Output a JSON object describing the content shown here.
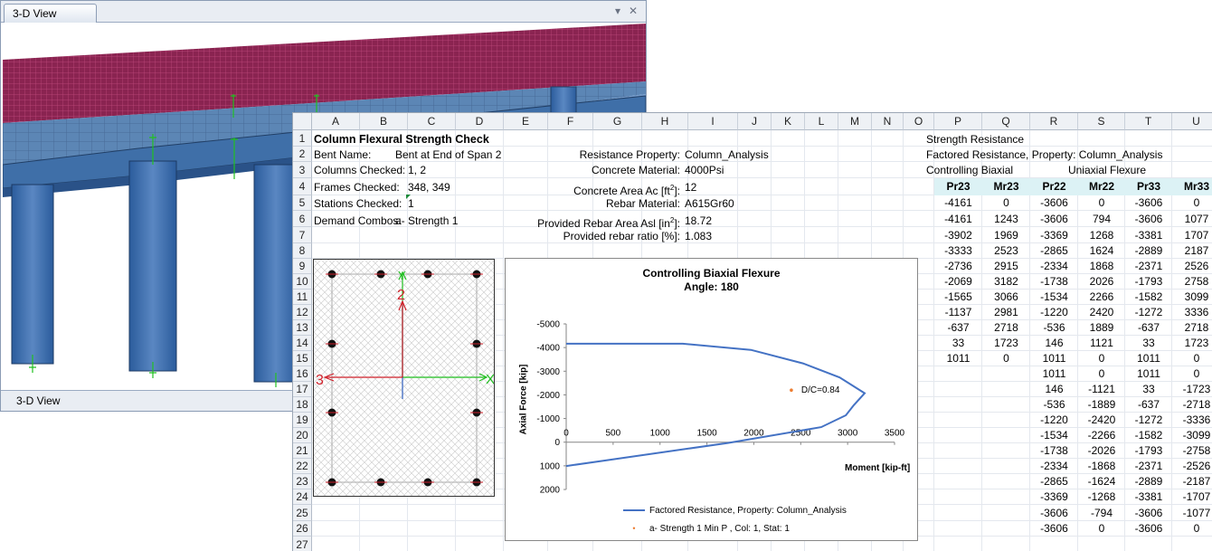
{
  "view3d": {
    "tab_label": "3-D View",
    "status_label": "3-D View",
    "colors": {
      "deck": "#8a2451",
      "girder": "#3f6a9e",
      "column": "#2f63a8",
      "support": "#21c021"
    }
  },
  "sheet": {
    "columns": [
      "A",
      "B",
      "C",
      "D",
      "E",
      "F",
      "G",
      "H",
      "I",
      "J",
      "K",
      "L",
      "M",
      "N",
      "O",
      "P",
      "Q",
      "R",
      "S",
      "T",
      "U"
    ],
    "rows": [
      "1",
      "2",
      "3",
      "4",
      "5",
      "6",
      "7",
      "8",
      "9",
      "10",
      "11",
      "12",
      "13",
      "14",
      "15",
      "16",
      "17",
      "18",
      "19",
      "20",
      "21",
      "22",
      "23",
      "24",
      "25",
      "26",
      "27"
    ],
    "title": "Column Flexural Strength Check",
    "bent_label": "Bent Name:",
    "bent_value": "Bent at End of Span 2",
    "columns_label": "Columns Checked:",
    "columns_value": "1, 2",
    "frames_label": "Frames Checked:",
    "frames_value": "348, 349",
    "stations_label": "Stations Checked:",
    "stations_value": "1",
    "demand_label": "Demand Combos:",
    "demand_value": "a- Strength 1",
    "resistance_label": "Resistance Property:",
    "resistance_value": "Column_Analysis",
    "concrete_label": "Concrete Material:",
    "concrete_value": "4000Psi",
    "area_label": "Concrete Area Ac [ft",
    "area_sup": "2",
    "area_suffix": "]:",
    "area_value": "12",
    "rebar_label": "Rebar Material:",
    "rebar_value": "A615Gr60",
    "rebar_area_label": "Provided Rebar Area Asl [in",
    "rebar_area_sup": "2",
    "rebar_area_suffix": "]:",
    "rebar_area_value": "18.72",
    "ratio_label": "Provided rebar ratio [%]:",
    "ratio_value": "1.083",
    "strength_resistance": "Strength Resistance",
    "factored_resistance": "Factored Resistance, Property: Column_Analysis",
    "controlling_biaxial": "Controlling Biaxial",
    "uniaxial_flexure": "Uniaxial Flexure",
    "table_headers": [
      "Pr23",
      "Mr23",
      "Pr22",
      "Mr22",
      "Pr33",
      "Mr33"
    ],
    "biaxial_rows": [
      [
        "-4161",
        "0"
      ],
      [
        "-4161",
        "1243"
      ],
      [
        "-3902",
        "1969"
      ],
      [
        "-3333",
        "2523"
      ],
      [
        "-2736",
        "2915"
      ],
      [
        "-2069",
        "3182"
      ],
      [
        "-1565",
        "3066"
      ],
      [
        "-1137",
        "2981"
      ],
      [
        "-637",
        "2718"
      ],
      [
        "33",
        "1723"
      ],
      [
        "1011",
        "0"
      ]
    ],
    "uniaxial_rows": [
      [
        "-3606",
        "0",
        "-3606",
        "0"
      ],
      [
        "-3606",
        "794",
        "-3606",
        "1077"
      ],
      [
        "-3369",
        "1268",
        "-3381",
        "1707"
      ],
      [
        "-2865",
        "1624",
        "-2889",
        "2187"
      ],
      [
        "-2334",
        "1868",
        "-2371",
        "2526"
      ],
      [
        "-1738",
        "2026",
        "-1793",
        "2758"
      ],
      [
        "-1534",
        "2266",
        "-1582",
        "3099"
      ],
      [
        "-1220",
        "2420",
        "-1272",
        "3336"
      ],
      [
        "-536",
        "1889",
        "-637",
        "2718"
      ],
      [
        "146",
        "1121",
        "33",
        "1723"
      ],
      [
        "1011",
        "0",
        "1011",
        "0"
      ],
      [
        "1011",
        "0",
        "1011",
        "0"
      ],
      [
        "146",
        "-1121",
        "33",
        "-1723"
      ],
      [
        "-536",
        "-1889",
        "-637",
        "-2718"
      ],
      [
        "-1220",
        "-2420",
        "-1272",
        "-3336"
      ],
      [
        "-1534",
        "-2266",
        "-1582",
        "-3099"
      ],
      [
        "-1738",
        "-2026",
        "-1793",
        "-2758"
      ],
      [
        "-2334",
        "-1868",
        "-2371",
        "-2526"
      ],
      [
        "-2865",
        "-1624",
        "-2889",
        "-2187"
      ],
      [
        "-3369",
        "-1268",
        "-3381",
        "-1707"
      ],
      [
        "-3606",
        "-794",
        "-3606",
        "-1077"
      ],
      [
        "-3606",
        "0",
        "-3606",
        "0"
      ]
    ]
  },
  "section": {
    "axis_labels": {
      "axis2": "2",
      "axis3": "3",
      "axisX": "X",
      "axisY": "Y"
    },
    "colors": {
      "x_axis": "#1fbf1f",
      "y_axis": "#1fbf1f",
      "axis2": "#d0202a",
      "axis3": "#d0202a",
      "bar": "#111111"
    }
  },
  "chart_data": {
    "type": "line",
    "title": "Controlling Biaxial Flexure",
    "subtitle": "Angle: 180",
    "xlabel": "Moment [kip-ft]",
    "ylabel": "Axial Force [kip]",
    "xlim": [
      0,
      3500
    ],
    "ylim": [
      -5000,
      2000
    ],
    "y_reversed": true,
    "xticks": [
      "0",
      "500",
      "1000",
      "1500",
      "2000",
      "2500",
      "3000",
      "3500"
    ],
    "yticks": [
      "-5000",
      "-4000",
      "-3000",
      "-2000",
      "-1000",
      "0",
      "1000",
      "2000"
    ],
    "series": [
      {
        "name": "Factored Resistance, Property: Column_Analysis",
        "color": "#4472c4",
        "x": [
          0,
          1243,
          1969,
          2523,
          2915,
          3182,
          3066,
          2981,
          2718,
          1723,
          0
        ],
        "y": [
          -4161,
          -4161,
          -3902,
          -3333,
          -2736,
          -2069,
          -1565,
          -1137,
          -637,
          33,
          1011
        ]
      },
      {
        "name": "a- Strength 1 Min P , Col: 1, Stat: 1",
        "color": "#ed7d31",
        "type": "scatter",
        "x": [
          2400
        ],
        "y": [
          -2200
        ],
        "annotation": "D/C=0.84"
      }
    ],
    "grid": false,
    "legend": "bottom"
  }
}
